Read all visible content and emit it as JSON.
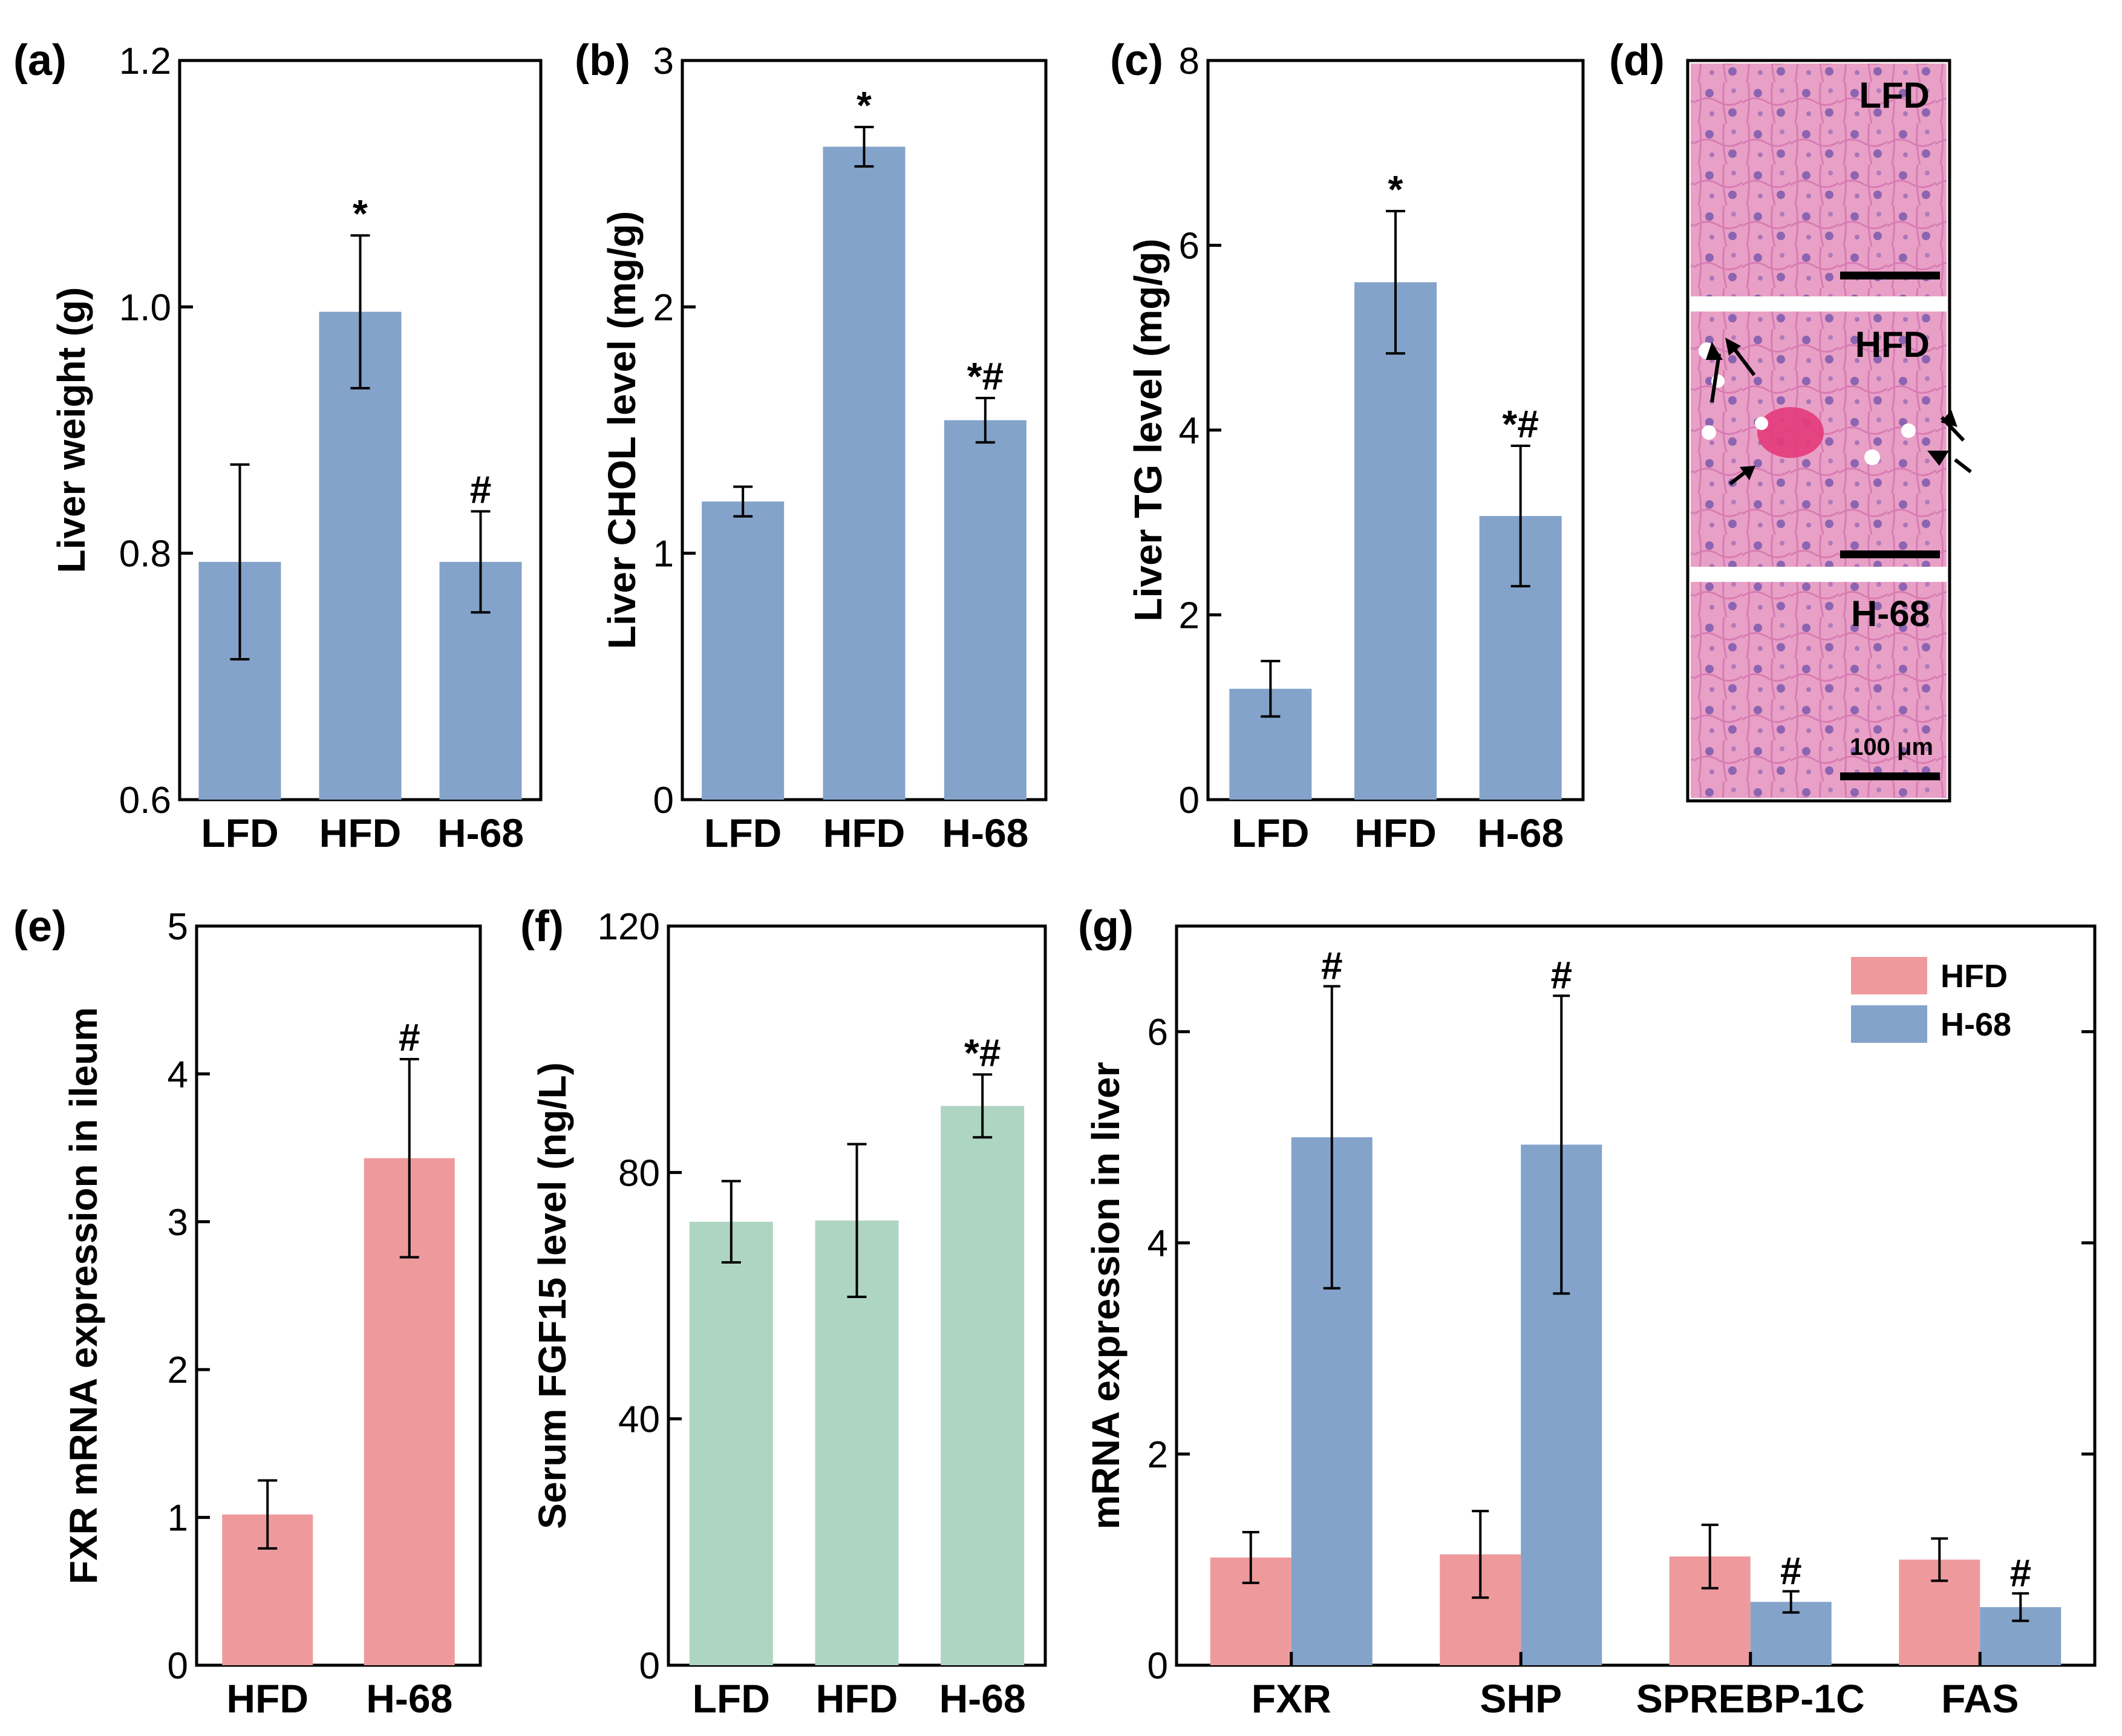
{
  "figure_colors": {
    "blue": "#84a3ca",
    "pink": "#ee9a9d",
    "green": "#aed5c2",
    "axis": "#000000",
    "tissue": "#e99ac8"
  },
  "chart_data": [
    {
      "id": "a",
      "panel_label": "(a)",
      "type": "bar",
      "categories": [
        "LFD",
        "HFD",
        "H-68"
      ],
      "values": [
        0.793,
        0.996,
        0.793
      ],
      "errors": [
        0.079,
        0.062,
        0.041
      ],
      "annotations": [
        "",
        "*",
        "#"
      ],
      "ylabel": "Liver weight (g)",
      "ylim": [
        0.6,
        1.2
      ],
      "yticks": [
        0.6,
        0.8,
        1.0,
        1.2
      ],
      "ytick_labels": [
        "0.6",
        "0.8",
        "1.0",
        "1.2"
      ],
      "color": "#84a3ca"
    },
    {
      "id": "b",
      "panel_label": "(b)",
      "type": "bar",
      "categories": [
        "LFD",
        "HFD",
        "H-68"
      ],
      "values": [
        1.21,
        2.65,
        1.54
      ],
      "errors": [
        0.06,
        0.08,
        0.09
      ],
      "annotations": [
        "",
        "*",
        "*#"
      ],
      "ylabel": "Liver CHOL level (mg/g)",
      "ylim": [
        0,
        3
      ],
      "yticks": [
        0,
        1,
        2,
        3
      ],
      "ytick_labels": [
        "0",
        "1",
        "2",
        "3"
      ],
      "color": "#84a3ca"
    },
    {
      "id": "c",
      "panel_label": "(c)",
      "type": "bar",
      "categories": [
        "LFD",
        "HFD",
        "H-68"
      ],
      "values": [
        1.2,
        5.6,
        3.07
      ],
      "errors": [
        0.3,
        0.77,
        0.76
      ],
      "annotations": [
        "",
        "*",
        "*#"
      ],
      "ylabel": "Liver TG level (mg/g)",
      "ylim": [
        0,
        8
      ],
      "yticks": [
        0,
        2,
        4,
        6,
        8
      ],
      "ytick_labels": [
        "0",
        "2",
        "4",
        "6",
        "8"
      ],
      "color": "#84a3ca"
    },
    {
      "id": "e",
      "panel_label": "(e)",
      "type": "bar",
      "categories": [
        "HFD",
        "H-68"
      ],
      "values": [
        1.02,
        3.43
      ],
      "errors": [
        0.23,
        0.67
      ],
      "annotations": [
        "",
        "#"
      ],
      "ylabel": "FXR mRNA expression in ileum",
      "ylim": [
        0,
        5
      ],
      "yticks": [
        0,
        1,
        2,
        3,
        4,
        5
      ],
      "ytick_labels": [
        "0",
        "1",
        "2",
        "3",
        "4",
        "5"
      ],
      "color": "#ee9a9d"
    },
    {
      "id": "f",
      "panel_label": "(f)",
      "type": "bar",
      "categories": [
        "LFD",
        "HFD",
        "H-68"
      ],
      "values": [
        72.0,
        72.2,
        90.8
      ],
      "errors": [
        6.6,
        12.4,
        5.1
      ],
      "annotations": [
        "",
        "",
        "*#"
      ],
      "ylabel": "Serum FGF15 level (ng/L)",
      "ylim": [
        0,
        120
      ],
      "yticks": [
        0,
        40,
        80,
        120
      ],
      "ytick_labels": [
        "0",
        "40",
        "80",
        "120"
      ],
      "color": "#aed5c2"
    },
    {
      "id": "g",
      "panel_label": "(g)",
      "type": "bar",
      "categories": [
        "FXR",
        "SHP",
        "SPREBP-1C",
        "FAS"
      ],
      "series": [
        {
          "name": "HFD",
          "values": [
            1.02,
            1.05,
            1.03,
            1.0
          ],
          "errors": [
            0.24,
            0.41,
            0.3,
            0.2
          ],
          "annotations": [
            "",
            "",
            "",
            ""
          ],
          "color": "#ee9a9d"
        },
        {
          "name": "H-68",
          "values": [
            5.0,
            4.93,
            0.6,
            0.55
          ],
          "errors": [
            1.43,
            1.41,
            0.1,
            0.13
          ],
          "annotations": [
            "#",
            "#",
            "#",
            "#"
          ],
          "color": "#84a3ca"
        }
      ],
      "ylabel": "mRNA expression in liver",
      "ylim": [
        0,
        7
      ],
      "yticks": [
        0,
        2,
        4,
        6
      ],
      "ytick_labels": [
        "0",
        "2",
        "4",
        "6"
      ],
      "legend": "top-right"
    }
  ],
  "micrographs": {
    "panel_label": "(d)",
    "labels": [
      "LFD",
      "HFD",
      "H-68"
    ],
    "scale_text": "100 μm"
  }
}
